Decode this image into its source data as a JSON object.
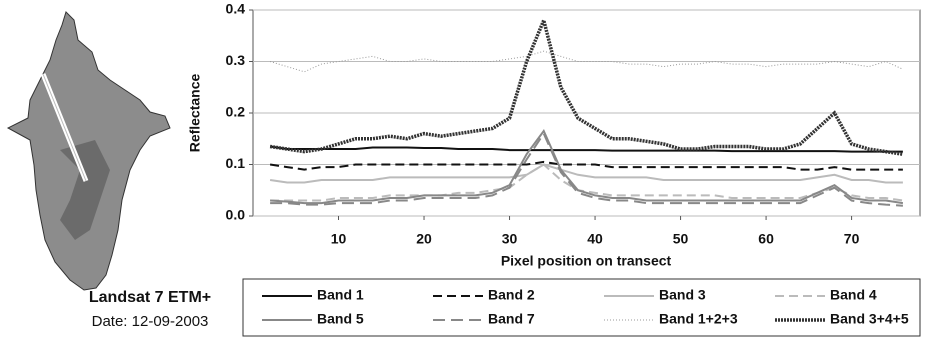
{
  "caption": {
    "title": "Landsat 7 ETM+",
    "date": "Date: 12-09-2003"
  },
  "chart_data": {
    "type": "line",
    "ylabel": "Reflectance",
    "xlabel": "Pixel position on transect",
    "xlim": [
      0,
      78
    ],
    "xticks": [
      10,
      20,
      30,
      40,
      50,
      60,
      70
    ],
    "ylim": [
      0,
      0.4
    ],
    "yticks": [
      {
        "value": 0,
        "label": "0.0"
      },
      0.1,
      0.2,
      0.3,
      0.4
    ],
    "grid": true,
    "x": [
      2,
      4,
      6,
      8,
      10,
      12,
      14,
      16,
      18,
      20,
      22,
      24,
      26,
      28,
      30,
      32,
      34,
      36,
      38,
      40,
      42,
      44,
      46,
      48,
      50,
      52,
      54,
      56,
      58,
      60,
      62,
      64,
      66,
      68,
      70,
      72,
      74,
      76
    ],
    "series": [
      {
        "name": "Band 1",
        "color": "#111111",
        "dash": "none",
        "width": 2,
        "values": [
          0.135,
          0.13,
          0.13,
          0.13,
          0.13,
          0.13,
          0.133,
          0.133,
          0.133,
          0.132,
          0.132,
          0.13,
          0.13,
          0.13,
          0.128,
          0.128,
          0.128,
          0.128,
          0.128,
          0.128,
          0.127,
          0.127,
          0.127,
          0.127,
          0.127,
          0.127,
          0.127,
          0.126,
          0.126,
          0.126,
          0.126,
          0.126,
          0.126,
          0.126,
          0.125,
          0.125,
          0.125,
          0.125
        ]
      },
      {
        "name": "Band 2",
        "color": "#111111",
        "dash": "9 5",
        "width": 2,
        "values": [
          0.1,
          0.095,
          0.09,
          0.095,
          0.095,
          0.1,
          0.1,
          0.1,
          0.1,
          0.1,
          0.1,
          0.1,
          0.1,
          0.1,
          0.1,
          0.1,
          0.105,
          0.1,
          0.1,
          0.1,
          0.095,
          0.095,
          0.095,
          0.095,
          0.095,
          0.095,
          0.095,
          0.095,
          0.095,
          0.095,
          0.095,
          0.09,
          0.09,
          0.095,
          0.09,
          0.09,
          0.09,
          0.09
        ]
      },
      {
        "name": "Band 3",
        "color": "#bbbbbb",
        "dash": "none",
        "width": 2,
        "values": [
          0.07,
          0.065,
          0.065,
          0.07,
          0.07,
          0.07,
          0.07,
          0.075,
          0.075,
          0.075,
          0.075,
          0.075,
          0.075,
          0.075,
          0.075,
          0.08,
          0.1,
          0.09,
          0.08,
          0.075,
          0.075,
          0.075,
          0.075,
          0.07,
          0.07,
          0.07,
          0.07,
          0.07,
          0.07,
          0.07,
          0.07,
          0.07,
          0.075,
          0.08,
          0.07,
          0.07,
          0.065,
          0.065
        ]
      },
      {
        "name": "Band 4",
        "color": "#bbbbbb",
        "dash": "9 5",
        "width": 2,
        "values": [
          0.03,
          0.03,
          0.03,
          0.03,
          0.035,
          0.035,
          0.035,
          0.04,
          0.04,
          0.04,
          0.04,
          0.045,
          0.045,
          0.05,
          0.055,
          0.08,
          0.1,
          0.07,
          0.05,
          0.045,
          0.04,
          0.04,
          0.04,
          0.04,
          0.04,
          0.04,
          0.04,
          0.035,
          0.035,
          0.035,
          0.035,
          0.035,
          0.045,
          0.055,
          0.04,
          0.035,
          0.035,
          0.03
        ]
      },
      {
        "name": "Band 5",
        "color": "#888888",
        "dash": "none",
        "width": 2,
        "values": [
          0.03,
          0.028,
          0.025,
          0.025,
          0.03,
          0.03,
          0.03,
          0.035,
          0.035,
          0.04,
          0.04,
          0.04,
          0.04,
          0.045,
          0.06,
          0.12,
          0.165,
          0.09,
          0.05,
          0.04,
          0.035,
          0.035,
          0.03,
          0.03,
          0.03,
          0.03,
          0.03,
          0.03,
          0.03,
          0.03,
          0.03,
          0.03,
          0.045,
          0.06,
          0.035,
          0.03,
          0.03,
          0.025
        ]
      },
      {
        "name": "Band 7",
        "color": "#888888",
        "dash": "12 6",
        "width": 2,
        "values": [
          0.025,
          0.025,
          0.022,
          0.022,
          0.025,
          0.025,
          0.025,
          0.03,
          0.03,
          0.035,
          0.035,
          0.035,
          0.035,
          0.04,
          0.055,
          0.11,
          0.16,
          0.085,
          0.045,
          0.035,
          0.03,
          0.03,
          0.025,
          0.025,
          0.025,
          0.025,
          0.025,
          0.025,
          0.025,
          0.025,
          0.025,
          0.025,
          0.04,
          0.055,
          0.03,
          0.025,
          0.022,
          0.02
        ]
      },
      {
        "name": "Band 1+2+3",
        "color": "#999999",
        "dash": "1 2",
        "width": 1,
        "values": [
          0.3,
          0.29,
          0.28,
          0.295,
          0.3,
          0.305,
          0.31,
          0.3,
          0.3,
          0.305,
          0.3,
          0.3,
          0.3,
          0.3,
          0.305,
          0.31,
          0.32,
          0.31,
          0.3,
          0.3,
          0.3,
          0.295,
          0.295,
          0.29,
          0.295,
          0.295,
          0.3,
          0.295,
          0.295,
          0.29,
          0.295,
          0.295,
          0.295,
          0.3,
          0.295,
          0.29,
          0.3,
          0.285
        ]
      },
      {
        "name": "Band 3+4+5",
        "color": "#333333",
        "dash": "2 1",
        "width": 3.5,
        "values": [
          0.135,
          0.13,
          0.125,
          0.13,
          0.14,
          0.15,
          0.15,
          0.155,
          0.15,
          0.16,
          0.155,
          0.16,
          0.165,
          0.17,
          0.19,
          0.3,
          0.38,
          0.25,
          0.19,
          0.17,
          0.15,
          0.15,
          0.145,
          0.14,
          0.13,
          0.13,
          0.135,
          0.135,
          0.135,
          0.13,
          0.13,
          0.14,
          0.17,
          0.2,
          0.14,
          0.13,
          0.125,
          0.12
        ]
      }
    ]
  }
}
